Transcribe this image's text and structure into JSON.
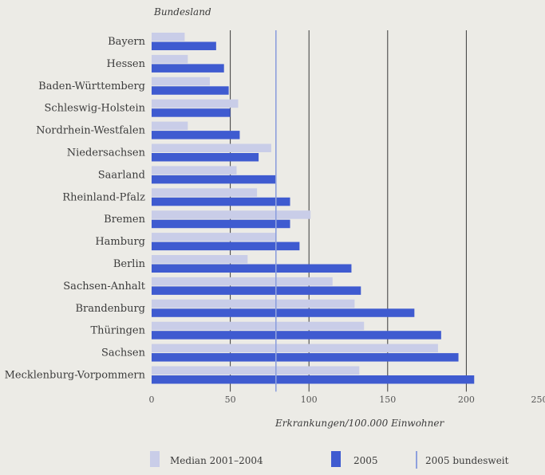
{
  "chart_data": {
    "type": "bar",
    "orientation": "horizontal",
    "title": "Bundesland",
    "xlabel": "Erkrankungen/100.000 Einwohner",
    "xlim": [
      0,
      250
    ],
    "xticks": [
      "0",
      "50",
      "100",
      "150",
      "200",
      "250"
    ],
    "grid": "vertical",
    "categories": [
      "Bayern",
      "Hessen",
      "Baden-Württemberg",
      "Schleswig-Holstein",
      "Nordrhein-Westfalen",
      "Niedersachsen",
      "Saarland",
      "Rheinland-Pfalz",
      "Bremen",
      "Hamburg",
      "Berlin",
      "Sachsen-Anhalt",
      "Brandenburg",
      "Thüringen",
      "Sachsen",
      "Mecklenburg-Vorpommern"
    ],
    "series": [
      {
        "name": "Median 2001–2004",
        "color": "#c9cde8",
        "values": [
          21,
          23,
          37,
          55,
          23,
          76,
          54,
          67,
          101,
          79,
          61,
          115,
          129,
          135,
          182,
          132
        ]
      },
      {
        "name": "2005",
        "color": "#3f5bd0",
        "values": [
          41,
          46,
          49,
          50,
          56,
          68,
          79,
          88,
          88,
          94,
          127,
          133,
          167,
          184,
          195,
          205
        ]
      }
    ],
    "reference_line": {
      "name": "2005 bundesweit",
      "value": 79,
      "color": "#8ea0dd"
    },
    "legend_position": "bottom"
  }
}
